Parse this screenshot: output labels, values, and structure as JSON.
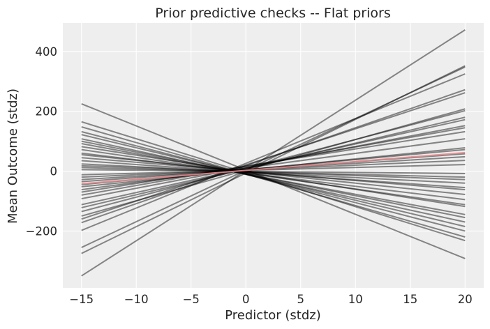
{
  "chart_data": {
    "type": "line",
    "title": "Prior predictive checks -- Flat priors",
    "xlabel": "Predictor (stdz)",
    "ylabel": "Mean Outcome (stdz)",
    "xlim": [
      -16.7,
      21.7
    ],
    "ylim": [
      -390,
      495
    ],
    "x_ticks": [
      -15,
      -10,
      -5,
      0,
      5,
      10,
      15,
      20
    ],
    "x_tick_labels": [
      "−15",
      "−10",
      "−5",
      "0",
      "5",
      "10",
      "15",
      "20"
    ],
    "y_ticks": [
      -200,
      0,
      200,
      400
    ],
    "y_tick_labels": [
      "−200",
      "0",
      "200",
      "400"
    ],
    "grid": true,
    "background": "#eeeeee",
    "grid_color": "#ffffff",
    "line_color": "#000000",
    "line_alpha": 0.45,
    "highlight_color": "#e8878c",
    "x": [
      -15,
      20
    ],
    "series": [
      {
        "values": [
          -350,
          472
        ]
      },
      {
        "values": [
          -275,
          352
        ]
      },
      {
        "values": [
          -255,
          348
        ]
      },
      {
        "values": [
          -198,
          325
        ]
      },
      {
        "values": [
          -172,
          272
        ]
      },
      {
        "values": [
          -160,
          262
        ]
      },
      {
        "values": [
          -150,
          208
        ]
      },
      {
        "values": [
          -135,
          202
        ]
      },
      {
        "values": [
          -122,
          180
        ]
      },
      {
        "values": [
          -112,
          172
        ]
      },
      {
        "values": [
          -92,
          152
        ]
      },
      {
        "values": [
          -80,
          145
        ]
      },
      {
        "values": [
          -70,
          132
        ]
      },
      {
        "values": [
          -62,
          108
        ]
      },
      {
        "values": [
          -52,
          78
        ]
      },
      {
        "values": [
          -45,
          72
        ]
      },
      {
        "values": [
          -35,
          58
        ]
      },
      {
        "values": [
          -28,
          48
        ]
      },
      {
        "values": [
          -20,
          36
        ]
      },
      {
        "values": [
          -12,
          22
        ]
      },
      {
        "values": [
          225,
          -292
        ]
      },
      {
        "values": [
          165,
          -232
        ]
      },
      {
        "values": [
          148,
          -220
        ]
      },
      {
        "values": [
          132,
          -200
        ]
      },
      {
        "values": [
          122,
          -185
        ]
      },
      {
        "values": [
          108,
          -170
        ]
      },
      {
        "values": [
          100,
          -155
        ]
      },
      {
        "values": [
          92,
          -145
        ]
      },
      {
        "values": [
          82,
          -118
        ]
      },
      {
        "values": [
          72,
          -112
        ]
      },
      {
        "values": [
          60,
          -95
        ]
      },
      {
        "values": [
          55,
          -78
        ]
      },
      {
        "values": [
          45,
          -62
        ]
      },
      {
        "values": [
          35,
          -55
        ]
      },
      {
        "values": [
          24,
          -40
        ]
      },
      {
        "values": [
          18,
          -28
        ]
      },
      {
        "values": [
          12,
          -20
        ]
      },
      {
        "values": [
          5,
          -8
        ]
      }
    ],
    "highlight": {
      "values": [
        -42,
        62
      ]
    }
  }
}
